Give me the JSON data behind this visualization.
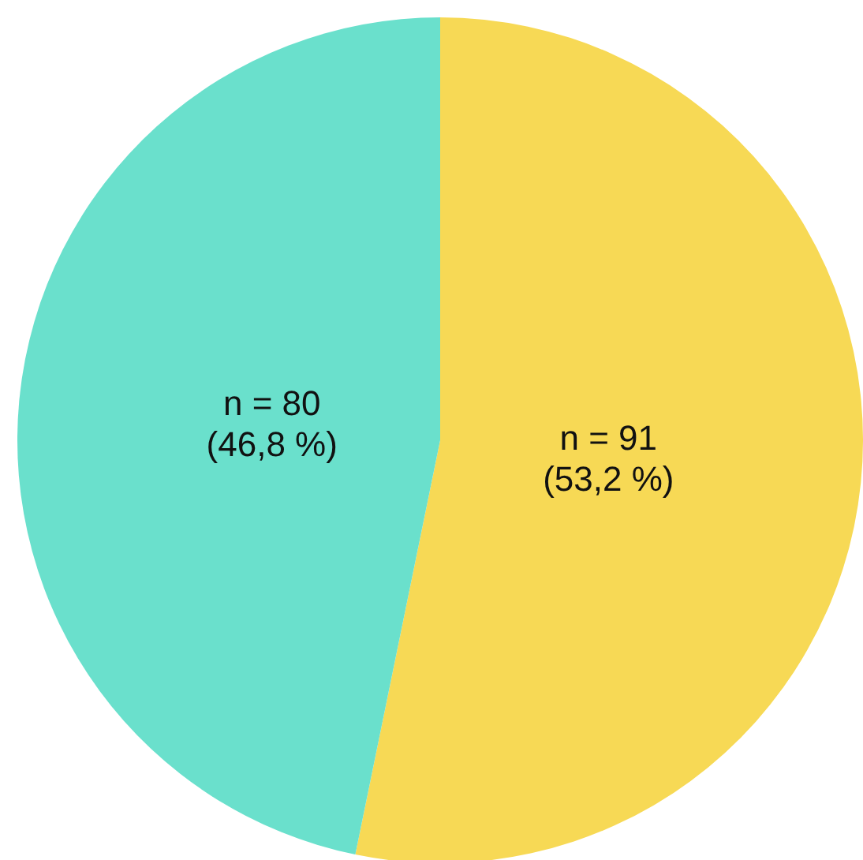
{
  "chart_data": {
    "type": "pie",
    "categories": [
      null,
      null
    ],
    "values": [
      91,
      80
    ],
    "colors": [
      "#f7d955",
      "#6ae0cc"
    ],
    "value_labels": [
      "n = 91\n(53,2 %)",
      "n = 80\n(46,8 %)"
    ]
  }
}
